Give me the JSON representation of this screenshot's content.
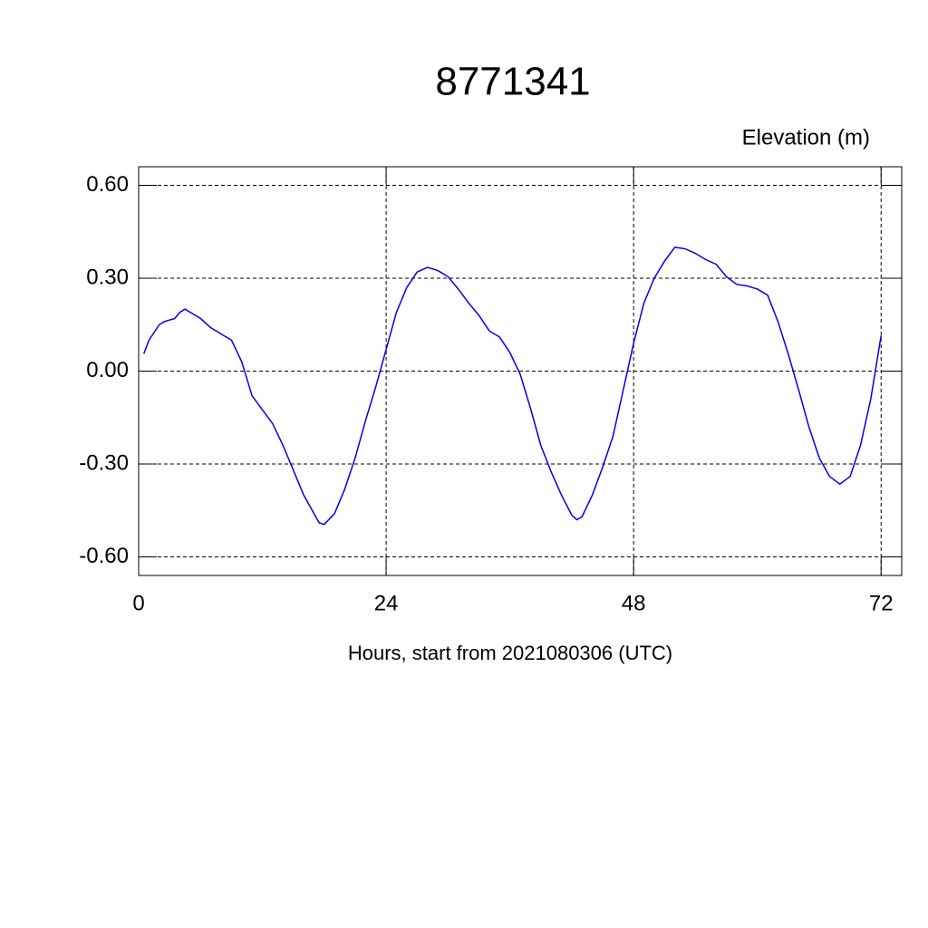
{
  "chart_data": {
    "type": "line",
    "title": "8771341",
    "subtitle": "Elevation (m)",
    "x_label": "Hours, start from 2021080306 (UTC)",
    "x": [
      0.5,
      1,
      2,
      2.5,
      3.5,
      4,
      4.5,
      5,
      6,
      7,
      8,
      9,
      10,
      11,
      12,
      13,
      14,
      15,
      16,
      17,
      17.5,
      18,
      19,
      20,
      21,
      22,
      23,
      24,
      25,
      26,
      27,
      28,
      29,
      30,
      31,
      32,
      33,
      34,
      35,
      36,
      37,
      38,
      39,
      40,
      41,
      42,
      42.5,
      43,
      44,
      45,
      46,
      47,
      48,
      49,
      50,
      51,
      52,
      53,
      54,
      55,
      56,
      57,
      58,
      59,
      60,
      61,
      62,
      63,
      64,
      65,
      66,
      67,
      68,
      69,
      70,
      71,
      72
    ],
    "series": [
      {
        "name": "Elevation",
        "color": "#0000ee",
        "values": [
          0.056,
          0.1,
          0.15,
          0.16,
          0.17,
          0.19,
          0.2,
          0.19,
          0.17,
          0.14,
          0.12,
          0.1,
          0.03,
          -0.08,
          -0.125,
          -0.17,
          -0.24,
          -0.32,
          -0.4,
          -0.46,
          -0.49,
          -0.495,
          -0.46,
          -0.38,
          -0.28,
          -0.16,
          -0.05,
          0.07,
          0.19,
          0.27,
          0.32,
          0.335,
          0.325,
          0.305,
          0.265,
          0.22,
          0.18,
          0.13,
          0.11,
          0.06,
          -0.01,
          -0.12,
          -0.24,
          -0.325,
          -0.4,
          -0.465,
          -0.48,
          -0.47,
          -0.4,
          -0.31,
          -0.21,
          -0.06,
          0.09,
          0.22,
          0.3,
          0.355,
          0.4,
          0.395,
          0.38,
          0.36,
          0.345,
          0.305,
          0.28,
          0.275,
          0.265,
          0.245,
          0.16,
          0.055,
          -0.06,
          -0.18,
          -0.28,
          -0.34,
          -0.365,
          -0.34,
          -0.24,
          -0.09,
          0.115
        ]
      }
    ],
    "xlim": [
      0,
      74
    ],
    "xticks": [
      0,
      24,
      48,
      72
    ],
    "ylim": [
      -0.66,
      0.66
    ],
    "yticks": [
      {
        "value": -0.6,
        "label": "-0.60"
      },
      {
        "value": -0.3,
        "label": "-0.30"
      },
      {
        "value": 0,
        "label": "0.00"
      },
      {
        "value": 0.3,
        "label": "0.30"
      },
      {
        "value": 0.6,
        "label": "0.60"
      }
    ],
    "grid": true
  }
}
